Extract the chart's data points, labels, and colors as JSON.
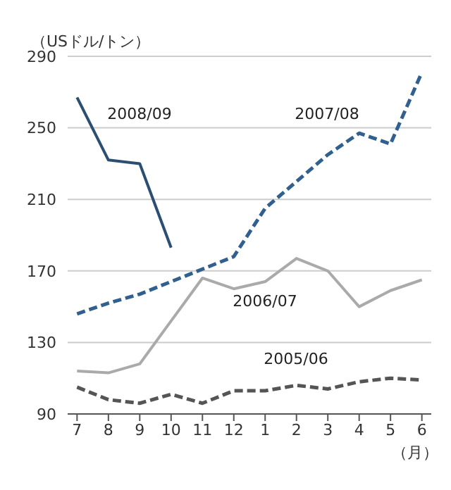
{
  "chart_data": {
    "type": "line",
    "ylabel": "（USドル/トン）",
    "xlabel": "（月）",
    "categories": [
      "7",
      "8",
      "9",
      "10",
      "11",
      "12",
      "1",
      "2",
      "3",
      "4",
      "5",
      "6"
    ],
    "series": [
      {
        "name": "2008/09",
        "color": "#2b4f72",
        "line_style": "solid",
        "values": [
          267,
          232,
          230,
          183,
          null,
          null,
          null,
          null,
          null,
          null,
          null,
          null
        ]
      },
      {
        "name": "2007/08",
        "color": "#31608f",
        "line_style": "dashed",
        "values": [
          146,
          152,
          157,
          164,
          171,
          178,
          205,
          220,
          235,
          247,
          241,
          281
        ]
      },
      {
        "name": "2006/07",
        "color": "#aaaaaa",
        "line_style": "solid",
        "values": [
          114,
          113,
          118,
          142,
          166,
          160,
          164,
          177,
          170,
          150,
          159,
          165
        ]
      },
      {
        "name": "2005/06",
        "color": "#555555",
        "line_style": "dashed",
        "values": [
          105,
          98,
          96,
          101,
          96,
          103,
          103,
          106,
          104,
          108,
          110,
          109
        ]
      }
    ],
    "ylim": [
      90,
      290
    ],
    "yticks": [
      90,
      130,
      170,
      210,
      250,
      290
    ],
    "grid": "y"
  }
}
